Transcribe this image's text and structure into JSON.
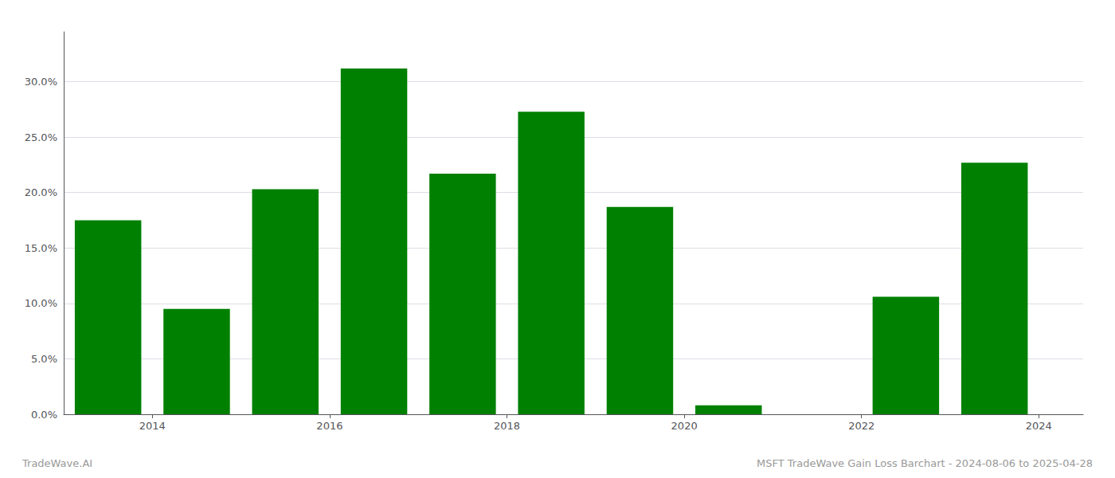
{
  "chart_data": {
    "type": "bar",
    "x": [
      2013.5,
      2014.5,
      2015.5,
      2016.5,
      2017.5,
      2018.5,
      2019.5,
      2020.5,
      2021.5,
      2022.5,
      2023.5
    ],
    "values": [
      0.175,
      0.095,
      0.203,
      0.312,
      0.217,
      0.273,
      0.187,
      0.008,
      0.0,
      0.106,
      0.227
    ],
    "color": "#008000",
    "xlim": [
      2013.0,
      2024.5
    ],
    "xticks": [
      2014,
      2016,
      2018,
      2020,
      2022,
      2024
    ],
    "ylim": [
      0,
      0.345
    ],
    "yticks": [
      {
        "value": 0.0,
        "label": "0.0%"
      },
      {
        "value": 0.05,
        "label": "5.0%"
      },
      {
        "value": 0.1,
        "label": "10.0%"
      },
      {
        "value": 0.15,
        "label": "15.0%"
      },
      {
        "value": 0.2,
        "label": "20.0%"
      },
      {
        "value": 0.25,
        "label": "25.0%"
      },
      {
        "value": 0.3,
        "label": "30.0%"
      }
    ],
    "grid": true,
    "annotations": [
      "TradeWave.AI",
      "MSFT TradeWave Gain Loss Barchart - 2024-08-06 to 2025-04-28"
    ]
  }
}
